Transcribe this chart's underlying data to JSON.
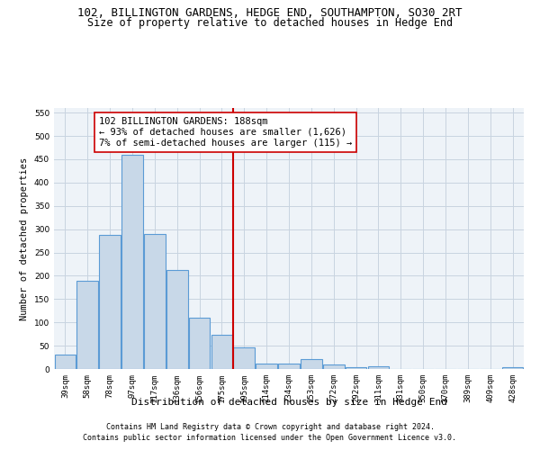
{
  "title": "102, BILLINGTON GARDENS, HEDGE END, SOUTHAMPTON, SO30 2RT",
  "subtitle": "Size of property relative to detached houses in Hedge End",
  "xlabel": "Distribution of detached houses by size in Hedge End",
  "ylabel": "Number of detached properties",
  "categories": [
    "39sqm",
    "58sqm",
    "78sqm",
    "97sqm",
    "117sqm",
    "136sqm",
    "156sqm",
    "175sqm",
    "195sqm",
    "214sqm",
    "234sqm",
    "253sqm",
    "272sqm",
    "292sqm",
    "311sqm",
    "331sqm",
    "350sqm",
    "370sqm",
    "389sqm",
    "409sqm",
    "428sqm"
  ],
  "values": [
    30,
    190,
    287,
    460,
    290,
    212,
    110,
    73,
    46,
    12,
    12,
    21,
    9,
    4,
    5,
    0,
    0,
    0,
    0,
    0,
    4
  ],
  "bar_color": "#c8d8e8",
  "bar_edgecolor": "#5b9bd5",
  "bar_linewidth": 0.8,
  "grid_color": "#c8d4e0",
  "background_color": "#eef3f8",
  "vline_color": "#cc0000",
  "annotation_text": "102 BILLINGTON GARDENS: 188sqm\n← 93% of detached houses are smaller (1,626)\n7% of semi-detached houses are larger (115) →",
  "annotation_box_color": "#ffffff",
  "annotation_box_edgecolor": "#cc0000",
  "ylim": [
    0,
    560
  ],
  "yticks": [
    0,
    50,
    100,
    150,
    200,
    250,
    300,
    350,
    400,
    450,
    500,
    550
  ],
  "footer1": "Contains HM Land Registry data © Crown copyright and database right 2024.",
  "footer2": "Contains public sector information licensed under the Open Government Licence v3.0.",
  "title_fontsize": 9,
  "subtitle_fontsize": 8.5,
  "xlabel_fontsize": 8,
  "ylabel_fontsize": 7.5,
  "tick_fontsize": 6.5,
  "annotation_fontsize": 7.5,
  "footer_fontsize": 6
}
